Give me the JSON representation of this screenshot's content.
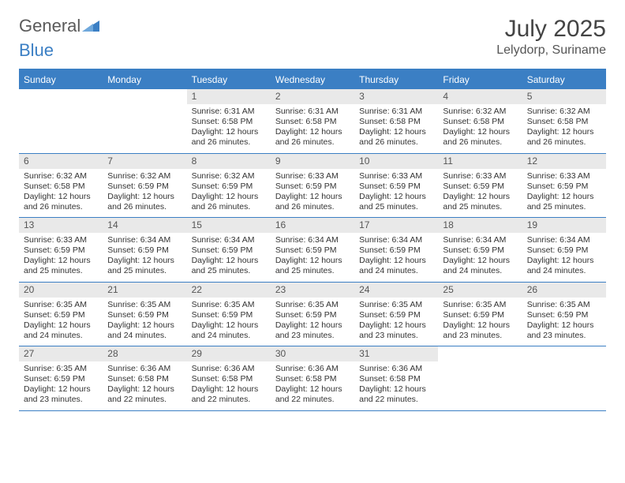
{
  "brand": {
    "part1": "General",
    "part2": "Blue"
  },
  "title": "July 2025",
  "location": "Lelydorp, Suriname",
  "colors": {
    "accent": "#3b7fc4",
    "headerText": "#ffffff",
    "dayBarBg": "#e9e9e9",
    "bodyText": "#333333",
    "titleText": "#444444",
    "background": "#ffffff"
  },
  "dayNames": [
    "Sunday",
    "Monday",
    "Tuesday",
    "Wednesday",
    "Thursday",
    "Friday",
    "Saturday"
  ],
  "startOffset": 2,
  "daysInMonth": 31,
  "days": {
    "1": {
      "sunrise": "6:31 AM",
      "sunset": "6:58 PM",
      "daylight": "12 hours and 26 minutes."
    },
    "2": {
      "sunrise": "6:31 AM",
      "sunset": "6:58 PM",
      "daylight": "12 hours and 26 minutes."
    },
    "3": {
      "sunrise": "6:31 AM",
      "sunset": "6:58 PM",
      "daylight": "12 hours and 26 minutes."
    },
    "4": {
      "sunrise": "6:32 AM",
      "sunset": "6:58 PM",
      "daylight": "12 hours and 26 minutes."
    },
    "5": {
      "sunrise": "6:32 AM",
      "sunset": "6:58 PM",
      "daylight": "12 hours and 26 minutes."
    },
    "6": {
      "sunrise": "6:32 AM",
      "sunset": "6:58 PM",
      "daylight": "12 hours and 26 minutes."
    },
    "7": {
      "sunrise": "6:32 AM",
      "sunset": "6:59 PM",
      "daylight": "12 hours and 26 minutes."
    },
    "8": {
      "sunrise": "6:32 AM",
      "sunset": "6:59 PM",
      "daylight": "12 hours and 26 minutes."
    },
    "9": {
      "sunrise": "6:33 AM",
      "sunset": "6:59 PM",
      "daylight": "12 hours and 26 minutes."
    },
    "10": {
      "sunrise": "6:33 AM",
      "sunset": "6:59 PM",
      "daylight": "12 hours and 25 minutes."
    },
    "11": {
      "sunrise": "6:33 AM",
      "sunset": "6:59 PM",
      "daylight": "12 hours and 25 minutes."
    },
    "12": {
      "sunrise": "6:33 AM",
      "sunset": "6:59 PM",
      "daylight": "12 hours and 25 minutes."
    },
    "13": {
      "sunrise": "6:33 AM",
      "sunset": "6:59 PM",
      "daylight": "12 hours and 25 minutes."
    },
    "14": {
      "sunrise": "6:34 AM",
      "sunset": "6:59 PM",
      "daylight": "12 hours and 25 minutes."
    },
    "15": {
      "sunrise": "6:34 AM",
      "sunset": "6:59 PM",
      "daylight": "12 hours and 25 minutes."
    },
    "16": {
      "sunrise": "6:34 AM",
      "sunset": "6:59 PM",
      "daylight": "12 hours and 25 minutes."
    },
    "17": {
      "sunrise": "6:34 AM",
      "sunset": "6:59 PM",
      "daylight": "12 hours and 24 minutes."
    },
    "18": {
      "sunrise": "6:34 AM",
      "sunset": "6:59 PM",
      "daylight": "12 hours and 24 minutes."
    },
    "19": {
      "sunrise": "6:34 AM",
      "sunset": "6:59 PM",
      "daylight": "12 hours and 24 minutes."
    },
    "20": {
      "sunrise": "6:35 AM",
      "sunset": "6:59 PM",
      "daylight": "12 hours and 24 minutes."
    },
    "21": {
      "sunrise": "6:35 AM",
      "sunset": "6:59 PM",
      "daylight": "12 hours and 24 minutes."
    },
    "22": {
      "sunrise": "6:35 AM",
      "sunset": "6:59 PM",
      "daylight": "12 hours and 24 minutes."
    },
    "23": {
      "sunrise": "6:35 AM",
      "sunset": "6:59 PM",
      "daylight": "12 hours and 23 minutes."
    },
    "24": {
      "sunrise": "6:35 AM",
      "sunset": "6:59 PM",
      "daylight": "12 hours and 23 minutes."
    },
    "25": {
      "sunrise": "6:35 AM",
      "sunset": "6:59 PM",
      "daylight": "12 hours and 23 minutes."
    },
    "26": {
      "sunrise": "6:35 AM",
      "sunset": "6:59 PM",
      "daylight": "12 hours and 23 minutes."
    },
    "27": {
      "sunrise": "6:35 AM",
      "sunset": "6:59 PM",
      "daylight": "12 hours and 23 minutes."
    },
    "28": {
      "sunrise": "6:36 AM",
      "sunset": "6:58 PM",
      "daylight": "12 hours and 22 minutes."
    },
    "29": {
      "sunrise": "6:36 AM",
      "sunset": "6:58 PM",
      "daylight": "12 hours and 22 minutes."
    },
    "30": {
      "sunrise": "6:36 AM",
      "sunset": "6:58 PM",
      "daylight": "12 hours and 22 minutes."
    },
    "31": {
      "sunrise": "6:36 AM",
      "sunset": "6:58 PM",
      "daylight": "12 hours and 22 minutes."
    }
  },
  "labels": {
    "sunrise": "Sunrise:",
    "sunset": "Sunset:",
    "daylight": "Daylight:"
  }
}
